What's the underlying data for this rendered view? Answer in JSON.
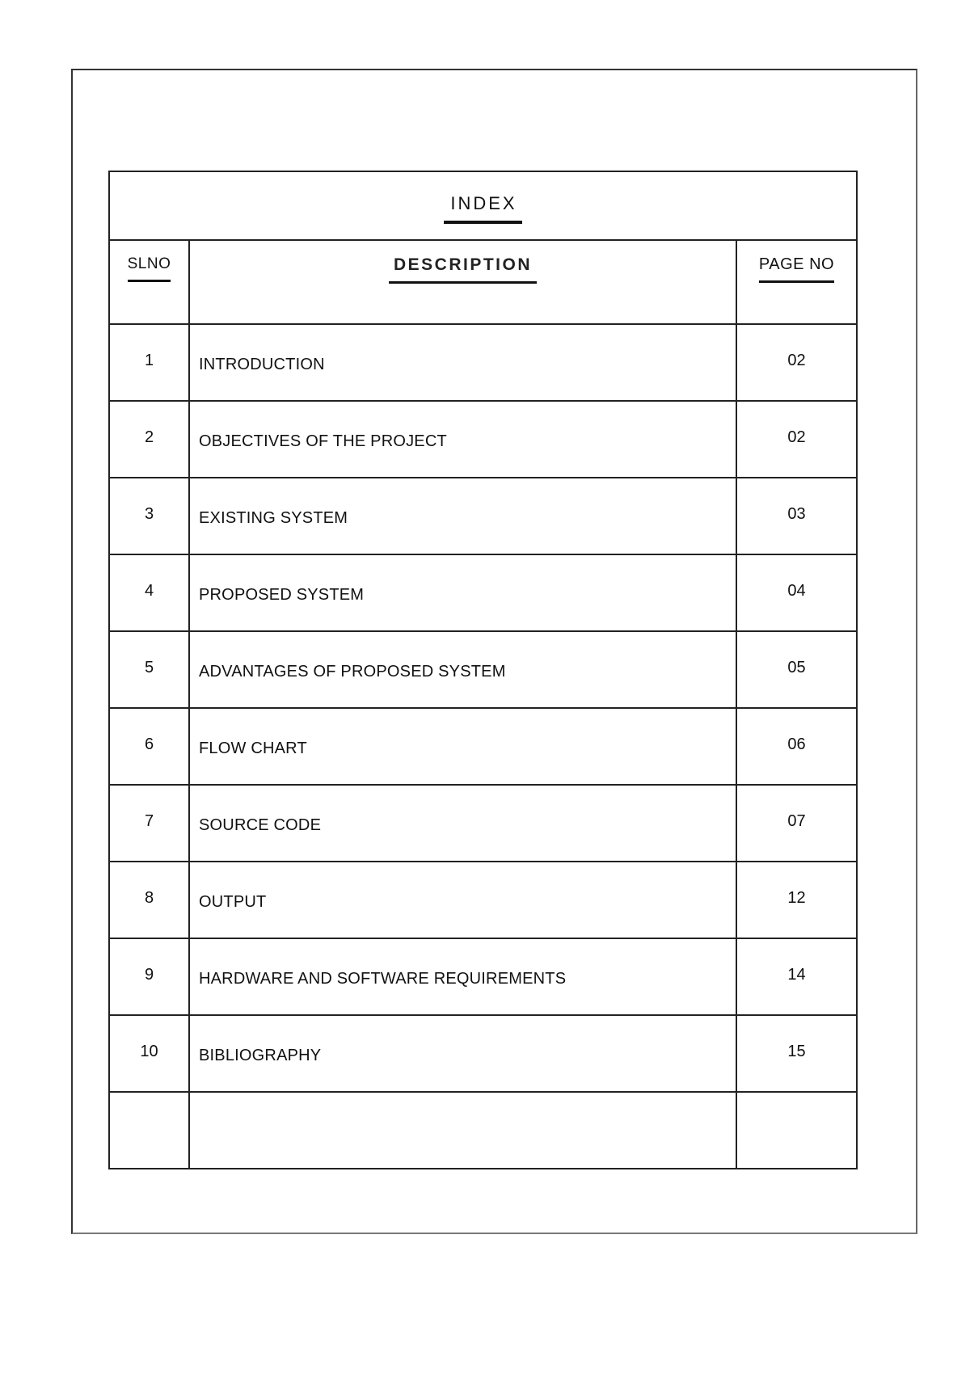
{
  "index": {
    "title": "INDEX",
    "headers": {
      "slno": "SLNO",
      "description": "DESCRIPTION",
      "page_no": "PAGE NO"
    },
    "rows": [
      {
        "slno": "1",
        "description": "INTRODUCTION",
        "page": "02"
      },
      {
        "slno": "2",
        "description": "OBJECTIVES OF THE PROJECT",
        "page": "02"
      },
      {
        "slno": "3",
        "description": "EXISTING SYSTEM",
        "page": "03"
      },
      {
        "slno": "4",
        "description": "PROPOSED SYSTEM",
        "page": "04"
      },
      {
        "slno": "5",
        "description": "ADVANTAGES OF PROPOSED SYSTEM",
        "page": "05"
      },
      {
        "slno": "6",
        "description": "FLOW CHART",
        "page": "06"
      },
      {
        "slno": "7",
        "description": "SOURCE CODE",
        "page": "07"
      },
      {
        "slno": "8",
        "description": "OUTPUT",
        "page": "12"
      },
      {
        "slno": "9",
        "description": "HARDWARE AND SOFTWARE REQUIREMENTS",
        "page": "14"
      },
      {
        "slno": "10",
        "description": "BIBLIOGRAPHY",
        "page": "15"
      },
      {
        "slno": "",
        "description": "",
        "page": ""
      }
    ]
  }
}
